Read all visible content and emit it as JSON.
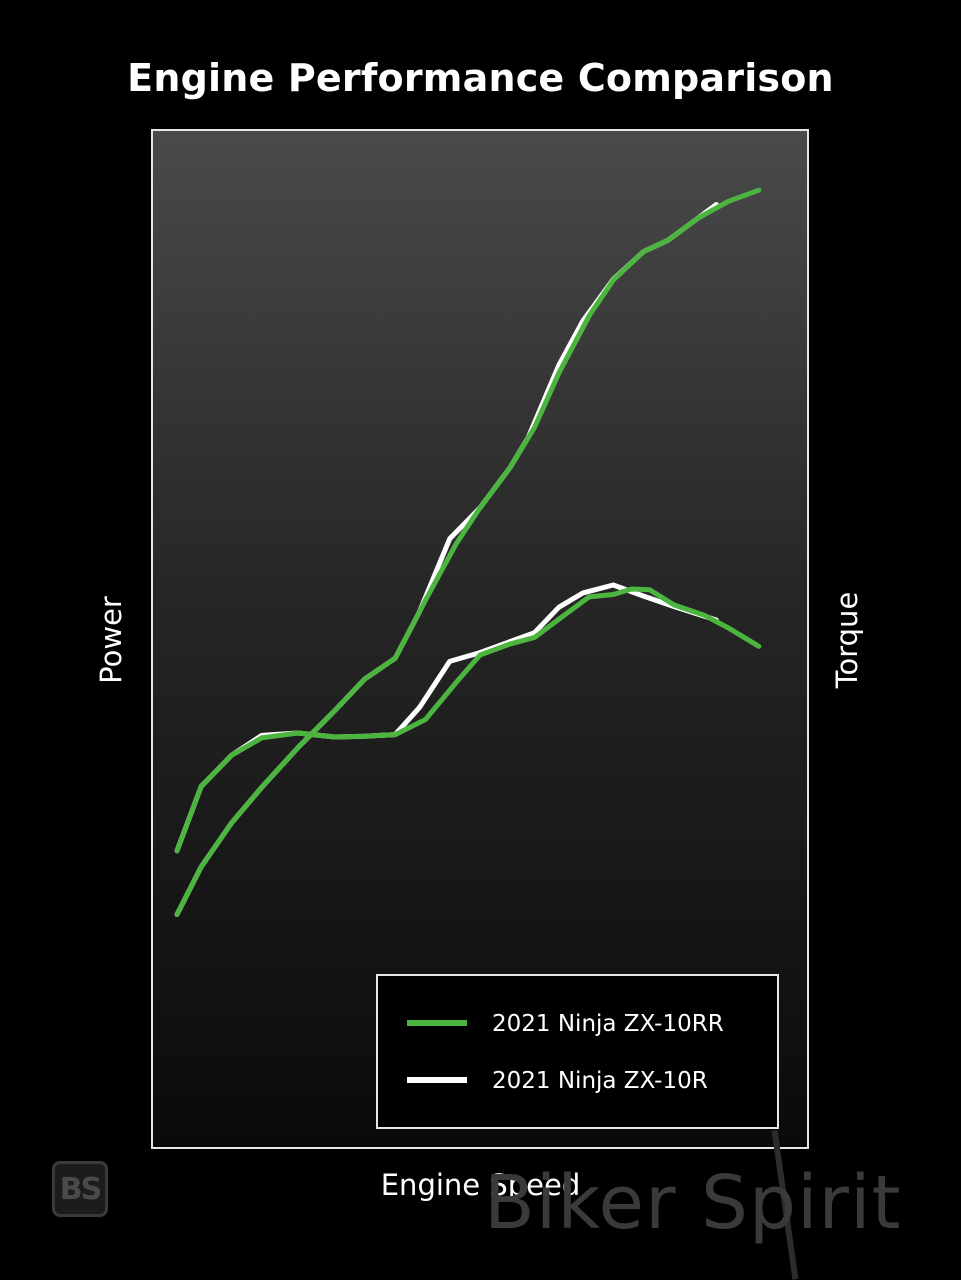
{
  "chart_data": {
    "type": "line",
    "title": "Engine Performance Comparison",
    "xlabel": "Engine Speed",
    "ylabel_left": "Power",
    "ylabel_right": "Torque",
    "grid": false,
    "legend_position": "bottom-right",
    "xlim": [
      0,
      100
    ],
    "ylim": [
      0,
      100
    ],
    "series": [
      {
        "name": "2021 Ninja ZX-10RR",
        "metric": "power",
        "color": "#4cb53f",
        "points": [
          [
            0,
            13
          ],
          [
            4,
            19
          ],
          [
            9,
            24.5
          ],
          [
            14,
            29
          ],
          [
            20,
            34
          ],
          [
            26,
            38.6
          ],
          [
            31,
            42.6
          ],
          [
            36,
            45.2
          ],
          [
            41,
            52.5
          ],
          [
            46,
            59.5
          ],
          [
            50,
            64.1
          ],
          [
            55,
            69.2
          ],
          [
            59,
            74.2
          ],
          [
            63,
            81
          ],
          [
            68,
            88.2
          ],
          [
            72,
            92.7
          ],
          [
            77,
            96.3
          ],
          [
            81,
            97.7
          ],
          [
            86,
            100.5
          ],
          [
            91,
            102.6
          ],
          [
            96,
            104
          ]
        ]
      },
      {
        "name": "2021 Ninja ZX-10R",
        "metric": "power",
        "color": "#ffffff",
        "points": [
          [
            0,
            13
          ],
          [
            4,
            19
          ],
          [
            9,
            24.5
          ],
          [
            14,
            29
          ],
          [
            20,
            34
          ],
          [
            26,
            38.6
          ],
          [
            31,
            42.6
          ],
          [
            36,
            45.2
          ],
          [
            40,
            51
          ],
          [
            45,
            60.2
          ],
          [
            50,
            64.1
          ],
          [
            55,
            69.2
          ],
          [
            58,
            73
          ],
          [
            63,
            82
          ],
          [
            67,
            87.6
          ],
          [
            72,
            92.8
          ],
          [
            77,
            96.3
          ],
          [
            81,
            97.7
          ],
          [
            86,
            100.5
          ],
          [
            89,
            102.2
          ]
        ]
      },
      {
        "name": "2021 Ninja ZX-10RR",
        "metric": "torque",
        "color": "#4cb53f",
        "points": [
          [
            0,
            21
          ],
          [
            4,
            29.1
          ],
          [
            9,
            33
          ],
          [
            14,
            35.2
          ],
          [
            20,
            35.8
          ],
          [
            26,
            35.3
          ],
          [
            31,
            35.4
          ],
          [
            36,
            35.6
          ],
          [
            41,
            37.5
          ],
          [
            46,
            42.1
          ],
          [
            50,
            45.6
          ],
          [
            55,
            47
          ],
          [
            59,
            47.8
          ],
          [
            63,
            50.1
          ],
          [
            68,
            52.9
          ],
          [
            72,
            53.2
          ],
          [
            75,
            53.9
          ],
          [
            78,
            53.8
          ],
          [
            82,
            51.9
          ],
          [
            87,
            50.6
          ],
          [
            91,
            49
          ],
          [
            96,
            46.7
          ]
        ]
      },
      {
        "name": "2021 Ninja ZX-10R",
        "metric": "torque",
        "color": "#ffffff",
        "points": [
          [
            0,
            21
          ],
          [
            4,
            29.1
          ],
          [
            9,
            33
          ],
          [
            14,
            35.5
          ],
          [
            20,
            35.8
          ],
          [
            26,
            35.3
          ],
          [
            31,
            35.4
          ],
          [
            36,
            35.6
          ],
          [
            40,
            39
          ],
          [
            45,
            44.8
          ],
          [
            50,
            45.9
          ],
          [
            55,
            47.3
          ],
          [
            59,
            48.4
          ],
          [
            63,
            51.6
          ],
          [
            67,
            53.4
          ],
          [
            72,
            54.4
          ],
          [
            77,
            53
          ],
          [
            82,
            51.7
          ],
          [
            89,
            50
          ]
        ]
      }
    ],
    "legend": [
      {
        "label": "2021 Ninja ZX-10RR",
        "color": "#4cb53f"
      },
      {
        "label": "2021 Ninja ZX-10R",
        "color": "#ffffff"
      }
    ]
  },
  "watermark": {
    "brand": "Biker Spirit",
    "logo_text": "BS"
  }
}
